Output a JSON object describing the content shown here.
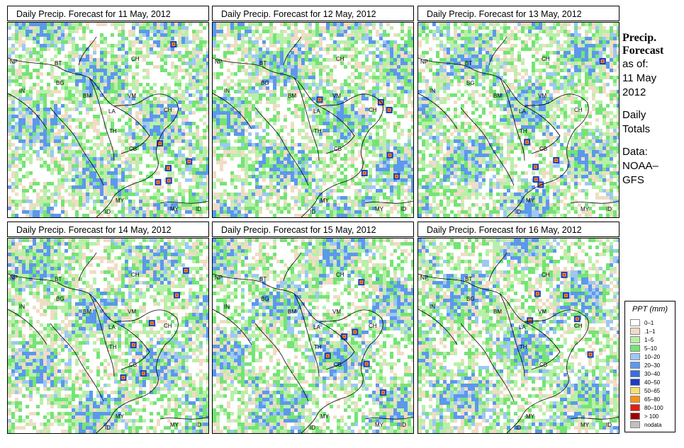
{
  "panels": [
    {
      "title": "Daily Precip. Forecast for  11 May, 2012"
    },
    {
      "title": "Daily Precip. Forecast for  12 May, 2012"
    },
    {
      "title": "Daily Precip. Forecast for  13 May, 2012"
    },
    {
      "title": "Daily Precip. Forecast for  14 May, 2012"
    },
    {
      "title": "Daily Precip. Forecast for  15 May, 2012"
    },
    {
      "title": "Daily Precip. Forecast for  16 May, 2012"
    }
  ],
  "map_labels": [
    "NP",
    "BT",
    "IN",
    "BG",
    "BM",
    "CH",
    "VM",
    "LA",
    "CH",
    "TH",
    "CB",
    "MY",
    "ID",
    "MY",
    "ID"
  ],
  "sidebar": {
    "title_line1": "Precip.",
    "title_line2": "Forecast",
    "asof_line1": "as of:",
    "asof_line2": "11 May",
    "asof_line3": "2012",
    "totals_line1": "Daily",
    "totals_line2": "Totals",
    "data_line1": "Data:",
    "data_line2": "NOAA–",
    "data_line3": "GFS"
  },
  "legend": {
    "title": "PPT (mm)",
    "items": [
      {
        "label": "0–1",
        "color": "#ffffff"
      },
      {
        "label": ".1–1",
        "color": "#f0dcc4"
      },
      {
        "label": "1–5",
        "color": "#b8f0a8"
      },
      {
        "label": "5–10",
        "color": "#74e474"
      },
      {
        "label": "10–20",
        "color": "#9cc8f4"
      },
      {
        "label": "20–30",
        "color": "#5c98ec"
      },
      {
        "label": "30–40",
        "color": "#3470e0"
      },
      {
        "label": "40–50",
        "color": "#1c3cc8"
      },
      {
        "label": "50–65",
        "color": "#f8e070"
      },
      {
        "label": "65–80",
        "color": "#f89018"
      },
      {
        "label": "80–100",
        "color": "#e02010"
      },
      {
        "label": "> 100",
        "color": "#a00000"
      },
      {
        "label": "nodata",
        "color": "#c0c0c0"
      }
    ]
  }
}
